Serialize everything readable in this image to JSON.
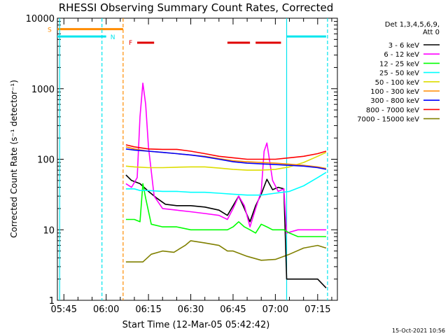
{
  "chart_data": {
    "type": "line",
    "title": "RHESSI Observing Summary Count Rates, Corrected",
    "xlabel": "Start Time (12-Mar-05 05:42:42)",
    "ylabel": "Corrected Count Rate (s⁻¹ detector⁻¹)",
    "ylog": true,
    "xlim": [
      "05:42:42",
      "07:22:00"
    ],
    "ylim": [
      1,
      10000
    ],
    "xticks": [
      "05:45",
      "06:00",
      "06:15",
      "06:30",
      "06:45",
      "07:00",
      "07:15"
    ],
    "yticks": [
      "1",
      "10",
      "100",
      "1000",
      "10000"
    ],
    "legend_header": [
      "Det 1,3,4,5,6,9,",
      "Att 0"
    ],
    "legend_position": "right",
    "timestamp": "15-Oct-2021 10:56",
    "flag_labels": [
      "S",
      "N",
      "F"
    ],
    "flags": {
      "S": {
        "color": "#ff8c00",
        "value": 7000,
        "intervals": [
          [
            "05:42:42",
            "06:06:00"
          ]
        ]
      },
      "N": {
        "color": "#00e5ee",
        "value": 5500,
        "intervals": [
          [
            "05:42:42",
            "06:00:00"
          ],
          [
            "07:04:00",
            "07:18:00"
          ]
        ]
      },
      "F": {
        "color": "#e00000",
        "value": 4500,
        "intervals": [
          [
            "06:11:00",
            "06:17:00"
          ],
          [
            "06:43:00",
            "06:51:00"
          ],
          [
            "06:53:00",
            "07:02:00"
          ]
        ]
      }
    },
    "vlines": [
      {
        "time": "05:43:30",
        "color": "#00e5ee",
        "style": "solid"
      },
      {
        "time": "05:58:30",
        "color": "#00e5ee",
        "style": "dashed"
      },
      {
        "time": "06:06:00",
        "color": "#ff8c00",
        "style": "dashed"
      },
      {
        "time": "07:04:00",
        "color": "#00e5ee",
        "style": "solid"
      },
      {
        "time": "07:18:30",
        "color": "#00e5ee",
        "style": "dashed"
      }
    ],
    "series": [
      {
        "name": "3 - 6 keV",
        "color": "#000000",
        "x": [
          "06:07",
          "06:09",
          "06:12",
          "06:15",
          "06:18",
          "06:21",
          "06:25",
          "06:30",
          "06:35",
          "06:40",
          "06:43",
          "06:45",
          "06:47",
          "06:49",
          "06:51",
          "06:53",
          "06:55",
          "06:57",
          "06:59",
          "07:01",
          "07:03",
          "07:04",
          "07:08",
          "07:12",
          "07:15",
          "07:18"
        ],
        "y": [
          60,
          50,
          45,
          35,
          28,
          23,
          22,
          22,
          21,
          19,
          16,
          22,
          30,
          20,
          13,
          22,
          32,
          52,
          37,
          40,
          38,
          2,
          2,
          2,
          2,
          1.5
        ]
      },
      {
        "name": "6 - 12 keV",
        "color": "#ff00ff",
        "x": [
          "06:07",
          "06:09",
          "06:11",
          "06:12",
          "06:13",
          "06:14",
          "06:15",
          "06:17",
          "06:20",
          "06:25",
          "06:30",
          "06:35",
          "06:40",
          "06:43",
          "06:45",
          "06:47",
          "06:49",
          "06:51",
          "06:53",
          "06:55",
          "06:56",
          "06:57",
          "06:59",
          "07:01",
          "07:03",
          "07:04",
          "07:08",
          "07:12",
          "07:15",
          "07:18"
        ],
        "y": [
          45,
          40,
          55,
          400,
          1200,
          600,
          150,
          30,
          20,
          19,
          18,
          17,
          16,
          14,
          20,
          30,
          22,
          11,
          20,
          35,
          130,
          170,
          50,
          35,
          38,
          9,
          10,
          10,
          10,
          10
        ]
      },
      {
        "name": "12 - 25 keV",
        "color": "#00ff00",
        "x": [
          "06:07",
          "06:10",
          "06:12",
          "06:13",
          "06:14",
          "06:16",
          "06:20",
          "06:25",
          "06:30",
          "06:35",
          "06:40",
          "06:43",
          "06:45",
          "06:47",
          "06:49",
          "06:51",
          "06:53",
          "06:55",
          "06:57",
          "06:59",
          "07:01",
          "07:03",
          "07:05",
          "07:08",
          "07:12",
          "07:15",
          "07:18"
        ],
        "y": [
          14,
          14,
          13,
          45,
          28,
          12,
          11,
          11,
          10,
          10,
          10,
          10,
          11,
          13,
          11,
          10,
          9,
          12,
          11,
          10,
          10,
          10,
          9,
          8,
          8,
          8,
          8
        ]
      },
      {
        "name": "25 - 50 keV",
        "color": "#00ffff",
        "x": [
          "06:07",
          "06:10",
          "06:12",
          "06:15",
          "06:20",
          "06:25",
          "06:30",
          "06:35",
          "06:40",
          "06:45",
          "06:50",
          "06:55",
          "07:00",
          "07:05",
          "07:10",
          "07:15",
          "07:18"
        ],
        "y": [
          38,
          38,
          36,
          36,
          35,
          35,
          34,
          34,
          33,
          32,
          31,
          31,
          33,
          35,
          42,
          55,
          65
        ]
      },
      {
        "name": "50 - 100 keV",
        "color": "#dddd00",
        "x": [
          "06:07",
          "06:10",
          "06:15",
          "06:20",
          "06:25",
          "06:30",
          "06:35",
          "06:40",
          "06:45",
          "06:50",
          "06:55",
          "07:00",
          "07:05",
          "07:10",
          "07:15",
          "07:18"
        ],
        "y": [
          80,
          78,
          76,
          76,
          77,
          78,
          78,
          75,
          72,
          70,
          70,
          72,
          78,
          90,
          110,
          125
        ]
      },
      {
        "name": "100 - 300 keV",
        "color": "#ff8c00",
        "x": [
          "06:07",
          "06:10",
          "06:15",
          "06:20",
          "06:25",
          "06:30",
          "06:35",
          "06:40",
          "06:45",
          "06:50",
          "06:55",
          "07:00",
          "07:05",
          "07:10",
          "07:15",
          "07:18"
        ],
        "y": [
          150,
          140,
          130,
          125,
          120,
          115,
          110,
          102,
          95,
          92,
          90,
          88,
          85,
          82,
          78,
          74
        ]
      },
      {
        "name": "300 - 800 keV",
        "color": "#0000ff",
        "x": [
          "06:07",
          "06:10",
          "06:15",
          "06:20",
          "06:25",
          "06:30",
          "06:35",
          "06:40",
          "06:45",
          "06:50",
          "06:55",
          "07:00",
          "07:05",
          "07:10",
          "07:15",
          "07:18"
        ],
        "y": [
          140,
          135,
          130,
          125,
          120,
          115,
          108,
          100,
          92,
          88,
          86,
          84,
          82,
          80,
          76,
          72
        ]
      },
      {
        "name": "800 - 7000 keV",
        "color": "#ff0000",
        "x": [
          "06:07",
          "06:10",
          "06:15",
          "06:20",
          "06:25",
          "06:30",
          "06:35",
          "06:40",
          "06:45",
          "06:50",
          "06:55",
          "07:00",
          "07:05",
          "07:10",
          "07:15",
          "07:18"
        ],
        "y": [
          160,
          150,
          140,
          138,
          138,
          130,
          120,
          110,
          105,
          100,
          100,
          100,
          105,
          110,
          120,
          130
        ]
      },
      {
        "name": "7000 - 15000 keV",
        "color": "#808000",
        "x": [
          "06:07",
          "06:10",
          "06:13",
          "06:16",
          "06:20",
          "06:24",
          "06:28",
          "06:30",
          "06:35",
          "06:40",
          "06:43",
          "06:45",
          "06:50",
          "06:55",
          "07:00",
          "07:05",
          "07:10",
          "07:15",
          "07:18"
        ],
        "y": [
          3.5,
          3.5,
          3.5,
          4.5,
          5,
          4.8,
          6,
          7,
          6.5,
          6,
          5,
          5,
          4.2,
          3.7,
          3.8,
          4.5,
          5.5,
          6,
          5.5
        ]
      }
    ]
  }
}
